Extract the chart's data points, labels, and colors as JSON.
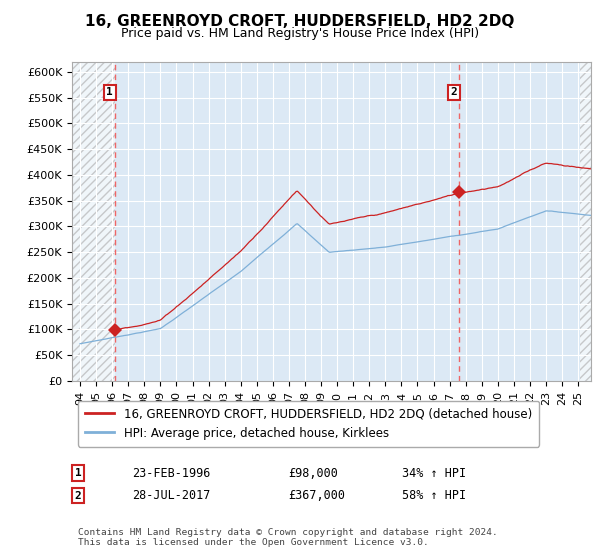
{
  "title": "16, GREENROYD CROFT, HUDDERSFIELD, HD2 2DQ",
  "subtitle": "Price paid vs. HM Land Registry's House Price Index (HPI)",
  "ylim": [
    0,
    620000
  ],
  "yticks": [
    0,
    50000,
    100000,
    150000,
    200000,
    250000,
    300000,
    350000,
    400000,
    450000,
    500000,
    550000,
    600000
  ],
  "xlim_start": 1993.5,
  "xlim_end": 2025.8,
  "sale1_year": 1996.15,
  "sale1_price": 98000,
  "sale1_label": "1",
  "sale1_date": "23-FEB-1996",
  "sale1_hpi_pct": "34% ↑ HPI",
  "sale2_year": 2017.57,
  "sale2_price": 367000,
  "sale2_label": "2",
  "sale2_date": "28-JUL-2017",
  "sale2_hpi_pct": "58% ↑ HPI",
  "line1_color": "#cc2222",
  "line2_color": "#7fb0d8",
  "marker_color": "#cc2222",
  "dashed_line_color": "#ee6666",
  "legend1_label": "16, GREENROYD CROFT, HUDDERSFIELD, HD2 2DQ (detached house)",
  "legend2_label": "HPI: Average price, detached house, Kirklees",
  "footer": "Contains HM Land Registry data © Crown copyright and database right 2024.\nThis data is licensed under the Open Government Licence v3.0.",
  "title_fontsize": 11,
  "subtitle_fontsize": 9,
  "tick_fontsize": 8,
  "legend_fontsize": 8.5,
  "bg_color": "#dce9f5"
}
